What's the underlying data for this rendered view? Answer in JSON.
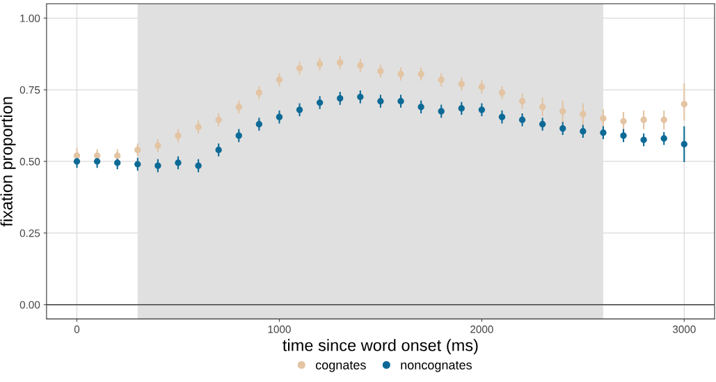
{
  "chart_data": {
    "type": "scatter",
    "xlabel": "time since word onset (ms)",
    "ylabel": "fixation proportion",
    "x": [
      0,
      100,
      200,
      300,
      400,
      500,
      600,
      700,
      800,
      900,
      1000,
      1100,
      1200,
      1300,
      1400,
      1500,
      1600,
      1700,
      1800,
      1900,
      2000,
      2100,
      2200,
      2300,
      2400,
      2500,
      2600,
      2700,
      2800,
      2900,
      3000
    ],
    "series": [
      {
        "name": "cognates",
        "color": "#e3c4a3",
        "values": [
          0.52,
          0.52,
          0.52,
          0.54,
          0.555,
          0.59,
          0.62,
          0.645,
          0.69,
          0.74,
          0.785,
          0.825,
          0.84,
          0.845,
          0.835,
          0.815,
          0.805,
          0.805,
          0.785,
          0.77,
          0.76,
          0.74,
          0.71,
          0.69,
          0.675,
          0.665,
          0.65,
          0.64,
          0.645,
          0.645,
          0.7
        ],
        "errors": [
          0.025,
          0.02,
          0.02,
          0.02,
          0.02,
          0.02,
          0.02,
          0.02,
          0.02,
          0.02,
          0.02,
          0.02,
          0.02,
          0.02,
          0.02,
          0.02,
          0.02,
          0.02,
          0.02,
          0.02,
          0.02,
          0.02,
          0.025,
          0.03,
          0.035,
          0.035,
          0.03,
          0.03,
          0.03,
          0.03,
          [
            0.645,
            0.77
          ]
        ]
      },
      {
        "name": "noncognates",
        "color": "#0d6a96",
        "values": [
          0.5,
          0.5,
          0.495,
          0.49,
          0.485,
          0.495,
          0.485,
          0.54,
          0.59,
          0.63,
          0.655,
          0.68,
          0.705,
          0.72,
          0.725,
          0.71,
          0.71,
          0.69,
          0.675,
          0.685,
          0.68,
          0.655,
          0.645,
          0.63,
          0.615,
          0.605,
          0.6,
          0.59,
          0.575,
          0.58,
          0.56
        ],
        "errors": [
          0.02,
          0.02,
          0.02,
          0.02,
          0.02,
          0.02,
          0.02,
          0.02,
          0.02,
          0.02,
          0.02,
          0.02,
          0.02,
          0.02,
          0.02,
          0.02,
          0.02,
          0.02,
          0.02,
          0.02,
          0.02,
          0.02,
          0.02,
          0.02,
          0.02,
          0.02,
          0.02,
          0.02,
          0.02,
          0.02,
          [
            0.5,
            0.62
          ]
        ]
      }
    ],
    "xlim": [
      -150,
      3150
    ],
    "xticks": [
      0,
      1000,
      2000,
      3000
    ],
    "ylim": [
      -0.05,
      1.05
    ],
    "yticks": [
      {
        "value": 0,
        "label": "0.00"
      },
      {
        "value": 0.25,
        "label": "0.25"
      },
      {
        "value": 0.5,
        "label": "0.50"
      },
      {
        "value": 0.75,
        "label": "0.75"
      },
      {
        "value": 1,
        "label": "1.00"
      }
    ],
    "bands": [
      {
        "axis": "x",
        "from": 300,
        "to": 2600,
        "color": "#e0e0e0"
      }
    ],
    "ref_lines": [
      {
        "axis": "y",
        "value": 0,
        "color": "#555555"
      }
    ],
    "grid": true,
    "legend": "bottom",
    "marker": "circle"
  }
}
